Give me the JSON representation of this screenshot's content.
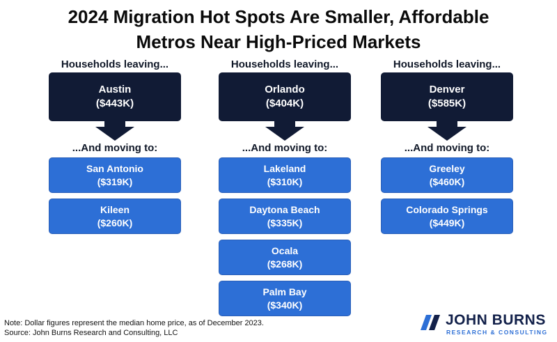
{
  "title": {
    "line1": "2024 Migration Hot Spots Are Smaller, Affordable",
    "line2": "Metros Near High-Priced Markets"
  },
  "columns": [
    {
      "leaving_label": "Households leaving...",
      "origin": {
        "city": "Austin",
        "price": "($443K)"
      },
      "moving_label": "...And moving to:",
      "destinations": [
        {
          "city": "San Antonio",
          "price": "($319K)"
        },
        {
          "city": "Kileen",
          "price": "($260K)"
        }
      ]
    },
    {
      "leaving_label": "Households leaving...",
      "origin": {
        "city": "Orlando",
        "price": "($404K)"
      },
      "moving_label": "...And moving to:",
      "destinations": [
        {
          "city": "Lakeland",
          "price": "($310K)"
        },
        {
          "city": "Daytona Beach",
          "price": "($335K)"
        },
        {
          "city": "Ocala",
          "price": "($268K)"
        },
        {
          "city": "Palm Bay",
          "price": "($340K)"
        }
      ]
    },
    {
      "leaving_label": "Households leaving...",
      "origin": {
        "city": "Denver",
        "price": "($585K)"
      },
      "moving_label": "...And moving to:",
      "destinations": [
        {
          "city": "Greeley",
          "price": "($460K)"
        },
        {
          "city": "Colorado Springs",
          "price": "($449K)"
        }
      ]
    }
  ],
  "footer": {
    "note": "Note: Dollar figures represent the median home price, as of December 2023.",
    "source": "Source: John Burns Research and Consulting, LLC"
  },
  "logo": {
    "name": "JOHN BURNS",
    "tagline": "RESEARCH & CONSULTING"
  },
  "colors": {
    "origin_fill": "#111b35",
    "destination_fill": "#2d6fd6"
  }
}
